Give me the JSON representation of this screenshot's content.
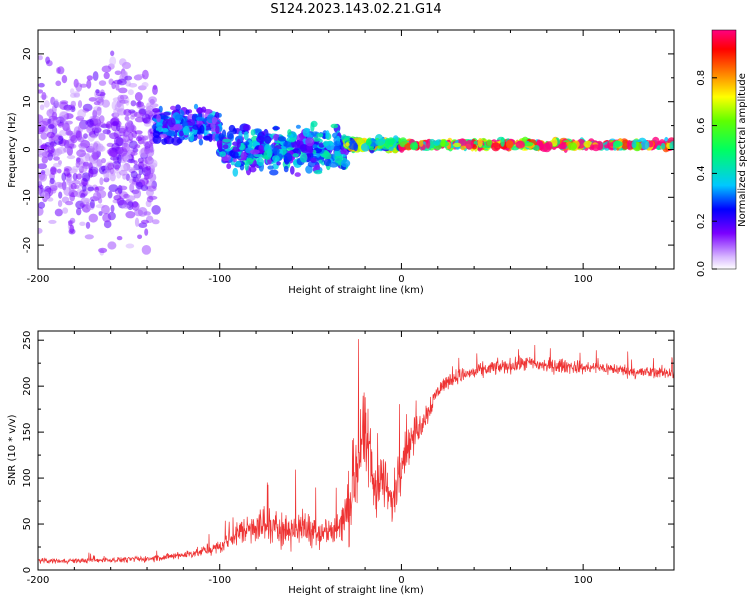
{
  "title": "S124.2023.143.02.21.G14",
  "chart_data": [
    {
      "type": "heatmap",
      "xlabel": "Height of straight line (km)",
      "ylabel": "Frequency (Hz)",
      "xlim": [
        -200,
        150
      ],
      "ylim": [
        -25,
        25
      ],
      "x_ticks": [
        -200,
        -100,
        0,
        100
      ],
      "x_tick_labels": [
        "-200",
        "-100",
        "0",
        "100"
      ],
      "y_ticks": [
        -20,
        -10,
        0,
        10,
        20
      ],
      "y_tick_labels": [
        "-20",
        "-10",
        "0",
        "10",
        "20"
      ],
      "colorbar": {
        "label": "Normalized spectral amplitude",
        "range": [
          0,
          1
        ],
        "ticks": [
          0.0,
          0.2,
          0.4,
          0.6,
          0.8
        ],
        "tick_labels": [
          "0.0",
          "0.2",
          "0.4",
          "0.6",
          "0.8"
        ]
      },
      "regions": [
        {
          "x_range": [
            -200,
            -135
          ],
          "freq_center": 0,
          "freq_spread": 25,
          "amplitude": 0.12,
          "description": "scattered noise"
        },
        {
          "x_range": [
            -135,
            -100
          ],
          "freq_center": 5,
          "freq_spread": 5,
          "amplitude": 0.25
        },
        {
          "x_range": [
            -100,
            -30
          ],
          "freq_center": 0,
          "freq_spread": 6,
          "amplitude": 0.3
        },
        {
          "x_range": [
            -30,
            0
          ],
          "freq_center": 1,
          "freq_spread": 1.5,
          "amplitude": 0.55
        },
        {
          "x_range": [
            0,
            150
          ],
          "freq_center": 1,
          "freq_spread": 1,
          "amplitude": 0.85
        }
      ]
    },
    {
      "type": "line",
      "xlabel": "Height of straight line (km)",
      "ylabel": "SNR (10 * v/v)",
      "xlim": [
        -200,
        150
      ],
      "ylim": [
        0,
        260
      ],
      "x_ticks": [
        -200,
        -100,
        0,
        100
      ],
      "x_tick_labels": [
        "-200",
        "-100",
        "0",
        "100"
      ],
      "y_ticks": [
        0,
        50,
        100,
        150,
        200,
        250
      ],
      "y_tick_labels": [
        "0",
        "50",
        "100",
        "150",
        "200",
        "250"
      ],
      "color": "#ee3333",
      "series": [
        {
          "name": "SNR",
          "x": [
            -200,
            -180,
            -160,
            -140,
            -125,
            -110,
            -100,
            -90,
            -80,
            -70,
            -60,
            -50,
            -40,
            -32,
            -28,
            -25,
            -22,
            -18,
            -15,
            -10,
            -5,
            0,
            5,
            10,
            15,
            20,
            25,
            30,
            40,
            50,
            60,
            70,
            80,
            90,
            100,
            110,
            120,
            130,
            140,
            150
          ],
          "y": [
            10,
            10,
            11,
            12,
            15,
            20,
            25,
            40,
            50,
            45,
            45,
            45,
            40,
            50,
            70,
            110,
            140,
            130,
            90,
            100,
            70,
            120,
            140,
            155,
            175,
            195,
            205,
            210,
            215,
            220,
            222,
            225,
            222,
            222,
            220,
            220,
            218,
            215,
            215,
            215
          ],
          "noise_amplitude": [
            4,
            4,
            4,
            5,
            6,
            8,
            10,
            20,
            30,
            30,
            28,
            28,
            28,
            40,
            60,
            70,
            80,
            70,
            50,
            50,
            40,
            40,
            30,
            25,
            20,
            15,
            12,
            12,
            12,
            12,
            12,
            12,
            12,
            12,
            10,
            10,
            10,
            10,
            10,
            10
          ]
        }
      ]
    }
  ]
}
